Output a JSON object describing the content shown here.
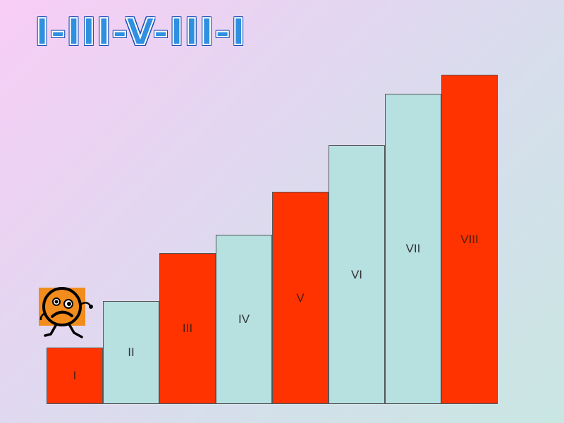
{
  "slide": {
    "title": "I-III-V-III-I"
  },
  "colors": {
    "red_step": "#ff3300",
    "light_step": "#b7e0e1",
    "title_fill": "#2f8fe0",
    "title_outline": "#1b4fb5",
    "character_body": "#f28c1c"
  },
  "stairs": [
    {
      "label": "I",
      "color": "red",
      "level": 1
    },
    {
      "label": "II",
      "color": "light",
      "level": 2
    },
    {
      "label": "III",
      "color": "red",
      "level": 3
    },
    {
      "label": "IV",
      "color": "light",
      "level": 4
    },
    {
      "label": "V",
      "color": "red",
      "level": 5
    },
    {
      "label": "VI",
      "color": "light",
      "level": 6
    },
    {
      "label": "VII",
      "color": "light",
      "level": 7
    },
    {
      "label": "VIII",
      "color": "red",
      "level": 8
    }
  ],
  "character": {
    "icon": "worried-face-character-icon",
    "position_step": "I"
  }
}
